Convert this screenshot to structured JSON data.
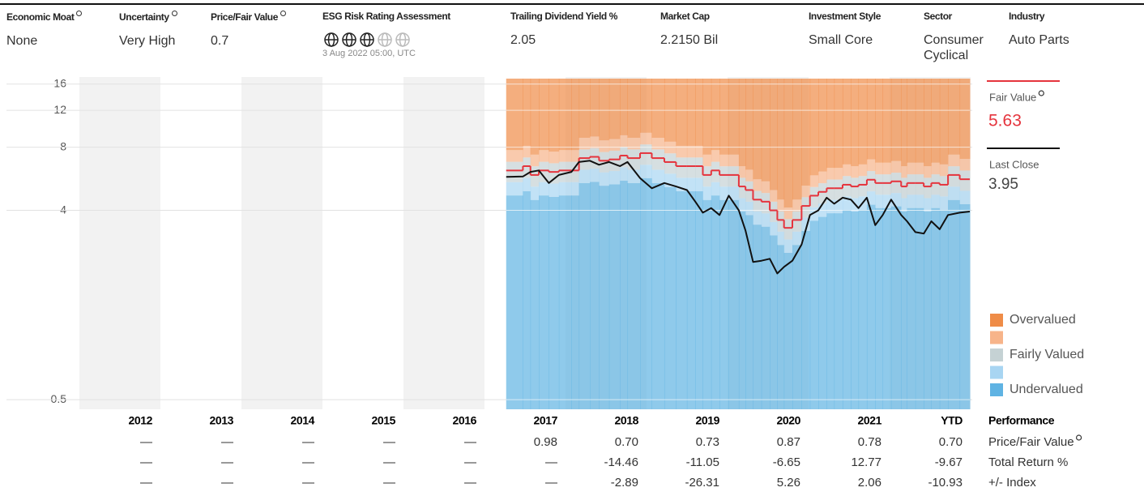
{
  "header": {
    "fields": [
      {
        "label": "Economic Moat",
        "info_icon": true,
        "value": "None"
      },
      {
        "label": "Uncertainty",
        "info_icon": true,
        "value": "Very High"
      },
      {
        "label": "Price/Fair Value",
        "info_icon": true,
        "value": "0.7"
      },
      {
        "label": "ESG Risk Rating Assessment",
        "info_icon": false,
        "globes": 3,
        "globe_slots": 5,
        "date": "3 Aug 2022 05:00, UTC"
      },
      {
        "label": "Trailing Dividend Yield %",
        "info_icon": false,
        "value": "2.05"
      },
      {
        "label": "Market Cap",
        "info_icon": false,
        "value": "2.2150 Bil"
      },
      {
        "label": "Investment Style",
        "info_icon": false,
        "value": "Small Core"
      },
      {
        "label": "Sector",
        "info_icon": false,
        "value": "Consumer Cyclical"
      },
      {
        "label": "Industry",
        "info_icon": false,
        "value": "Auto Parts"
      }
    ]
  },
  "chart_data": {
    "type": "line",
    "yscale": "log",
    "ylim": [
      0.45,
      17
    ],
    "yticks": [
      0.5,
      4,
      8,
      12,
      16
    ],
    "grid": true,
    "xlim": [
      2012,
      2022.65
    ],
    "x": [
      2017.1,
      2017.3,
      2017.39,
      2017.49,
      2017.61,
      2017.73,
      2017.88,
      2017.97,
      2018.1,
      2018.21,
      2018.33,
      2018.46,
      2018.55,
      2018.7,
      2018.84,
      2018.99,
      2019.13,
      2019.26,
      2019.36,
      2019.45,
      2019.55,
      2019.65,
      2019.76,
      2019.88,
      2019.96,
      2020.05,
      2020.15,
      2020.25,
      2020.34,
      2020.42,
      2020.52,
      2020.63,
      2020.73,
      2020.83,
      2020.93,
      2021.02,
      2021.12,
      2021.22,
      2021.31,
      2021.41,
      2021.51,
      2021.6,
      2021.7,
      2021.82,
      2021.89,
      2021.99,
      2022.09,
      2022.18,
      2022.28,
      2022.38,
      2022.52,
      2022.64
    ],
    "series": [
      {
        "name": "Fair Value",
        "color": "#e5343d",
        "step": true,
        "info_icon": true,
        "values": [
          6.2,
          6.5,
          5.9,
          6.2,
          6.1,
          6.2,
          6.2,
          7.1,
          7.2,
          6.9,
          7.0,
          7.3,
          7.1,
          7.5,
          7.1,
          6.8,
          6.5,
          6.5,
          6.5,
          5.9,
          6.2,
          5.9,
          5.9,
          5.2,
          5.0,
          4.5,
          4.4,
          4.0,
          3.6,
          3.3,
          3.6,
          4.2,
          4.7,
          4.9,
          5.1,
          5.1,
          5.3,
          5.2,
          5.3,
          5.6,
          5.4,
          5.4,
          5.5,
          5.2,
          5.4,
          5.4,
          5.2,
          5.4,
          5.3,
          5.9,
          5.63,
          5.63
        ]
      },
      {
        "name": "Last Close",
        "color": "#111111",
        "step": false,
        "values": [
          5.78,
          5.8,
          6.1,
          6.2,
          5.4,
          5.9,
          6.1,
          6.8,
          6.9,
          6.6,
          6.8,
          6.5,
          6.8,
          5.7,
          5.1,
          5.4,
          5.2,
          5.0,
          4.4,
          3.9,
          4.1,
          3.8,
          4.7,
          4.0,
          3.2,
          2.27,
          2.3,
          2.35,
          2.0,
          2.15,
          2.3,
          2.75,
          3.8,
          4.0,
          4.6,
          4.3,
          4.6,
          4.5,
          4.1,
          4.6,
          3.4,
          3.8,
          4.5,
          3.8,
          3.55,
          3.15,
          3.1,
          3.55,
          3.25,
          3.8,
          3.9,
          3.95
        ]
      }
    ],
    "bands": [
      {
        "name": "Undervalued",
        "color": "#5fb3e3",
        "upper_ratio": 0.76
      },
      {
        "name": null,
        "color": "#a8d5f2",
        "upper_ratio": 0.88
      },
      {
        "name": "Fairly Valued",
        "color": "#c5d2d4",
        "upper_ratio": 1.1
      },
      {
        "name": null,
        "color": "#f7b48a",
        "upper_ratio": 1.25
      },
      {
        "name": "Overvalued",
        "color": "#ef8c47",
        "upper_ratio": null
      }
    ]
  },
  "table": {
    "title": "Performance",
    "columns": [
      "2012",
      "2013",
      "2014",
      "2015",
      "2016",
      "2017",
      "2018",
      "2019",
      "2020",
      "2021",
      "YTD"
    ],
    "rows": [
      {
        "label": "Price/Fair Value",
        "info_icon": true,
        "cells": [
          "—",
          "—",
          "—",
          "—",
          "—",
          "0.98",
          "0.70",
          "0.73",
          "0.87",
          "0.78",
          "0.70"
        ]
      },
      {
        "label": "Total Return %",
        "info_icon": false,
        "cells": [
          "—",
          "—",
          "—",
          "—",
          "—",
          "—",
          "-14.46",
          "-11.05",
          "-6.65",
          "12.77",
          "-9.67"
        ]
      },
      {
        "label": "+/- Index",
        "info_icon": false,
        "cells": [
          "—",
          "—",
          "—",
          "—",
          "—",
          "—",
          "-2.89",
          "-26.31",
          "5.26",
          "2.06",
          "-10.93"
        ]
      }
    ]
  }
}
